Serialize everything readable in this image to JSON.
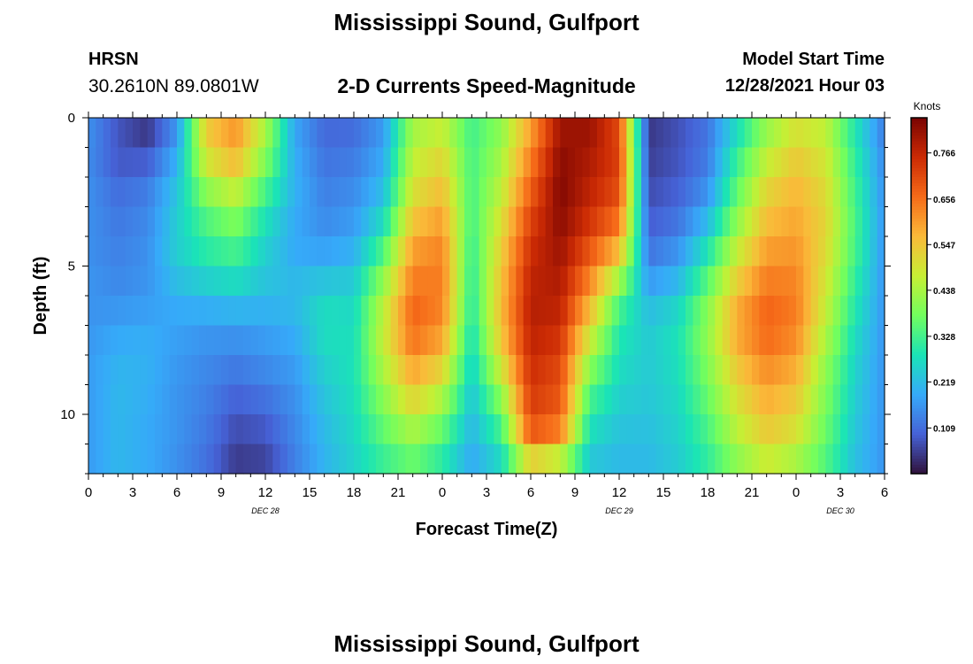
{
  "header": {
    "title": "Mississippi Sound, Gulfport",
    "station_id": "HRSN",
    "coordinates": "30.2610N  89.0801W",
    "subtitle": "2-D Currents Speed-Magnitude",
    "model_start_label": "Model Start Time",
    "model_start_value": "12/28/2021 Hour 03"
  },
  "footer": {
    "title": "Mississippi Sound, Gulfport"
  },
  "chart_data": {
    "type": "heatmap",
    "xlabel": "Forecast Time(Z)",
    "ylabel": "Depth (ft)",
    "colorbar_label": "Knots",
    "x_range_hours": [
      0,
      54
    ],
    "y_range_ft": [
      0,
      12
    ],
    "y_inverted": true,
    "x_tick_labels": [
      "0",
      "3",
      "6",
      "9",
      "12",
      "15",
      "18",
      "21",
      "0",
      "3",
      "6",
      "9",
      "12",
      "15",
      "18",
      "21",
      "0",
      "3",
      "6"
    ],
    "y_ticks": [
      0,
      5,
      10
    ],
    "y_tick_labels": [
      "0",
      "5",
      "10"
    ],
    "day_labels": [
      {
        "text": "DEC 28",
        "hour": 12
      },
      {
        "text": "DEC 29",
        "hour": 36
      },
      {
        "text": "DEC 30",
        "hour": 51
      }
    ],
    "colorbar_range": [
      0.0,
      0.85
    ],
    "colorbar_ticks": [
      0.109,
      0.219,
      0.328,
      0.438,
      0.547,
      0.656,
      0.766
    ],
    "colorbar_tick_labels": [
      "0.109",
      "0.219",
      "0.328",
      "0.438",
      "0.547",
      "0.656",
      "0.766"
    ],
    "colormap": [
      "#30123b",
      "#4662d7",
      "#36aaf9",
      "#1ae4b6",
      "#72fe5e",
      "#c7ef34",
      "#faba39",
      "#f66b19",
      "#cb2a04",
      "#7a0403"
    ],
    "depths_ft": [
      0,
      1,
      2,
      3,
      4,
      5,
      6,
      7,
      8,
      9,
      10,
      11,
      12
    ],
    "hours": [
      0,
      2,
      4,
      6,
      8,
      10,
      12,
      14,
      16,
      18,
      20,
      22,
      24,
      26,
      28,
      30,
      32,
      34,
      36,
      38,
      40,
      42,
      44,
      46,
      48,
      50,
      52,
      54
    ],
    "speed_knots": [
      [
        0.16,
        0.09,
        0.03,
        0.15,
        0.55,
        0.62,
        0.45,
        0.18,
        0.1,
        0.1,
        0.16,
        0.42,
        0.45,
        0.32,
        0.4,
        0.58,
        0.8,
        0.82,
        0.7,
        0.04,
        0.08,
        0.12,
        0.25,
        0.4,
        0.48,
        0.45,
        0.28,
        0.12
      ],
      [
        0.15,
        0.07,
        0.06,
        0.18,
        0.52,
        0.6,
        0.42,
        0.19,
        0.11,
        0.12,
        0.18,
        0.45,
        0.5,
        0.33,
        0.42,
        0.62,
        0.82,
        0.8,
        0.72,
        0.05,
        0.07,
        0.12,
        0.3,
        0.44,
        0.52,
        0.48,
        0.3,
        0.14
      ],
      [
        0.15,
        0.1,
        0.12,
        0.22,
        0.45,
        0.52,
        0.36,
        0.2,
        0.13,
        0.14,
        0.2,
        0.48,
        0.54,
        0.33,
        0.45,
        0.66,
        0.84,
        0.78,
        0.72,
        0.06,
        0.09,
        0.14,
        0.34,
        0.5,
        0.56,
        0.5,
        0.32,
        0.15
      ],
      [
        0.16,
        0.12,
        0.14,
        0.24,
        0.36,
        0.42,
        0.3,
        0.2,
        0.14,
        0.16,
        0.24,
        0.52,
        0.58,
        0.33,
        0.48,
        0.7,
        0.84,
        0.76,
        0.68,
        0.08,
        0.1,
        0.18,
        0.38,
        0.54,
        0.58,
        0.52,
        0.33,
        0.16
      ],
      [
        0.15,
        0.13,
        0.15,
        0.25,
        0.32,
        0.36,
        0.26,
        0.18,
        0.16,
        0.18,
        0.3,
        0.58,
        0.62,
        0.32,
        0.52,
        0.74,
        0.82,
        0.72,
        0.62,
        0.1,
        0.14,
        0.25,
        0.44,
        0.58,
        0.6,
        0.52,
        0.34,
        0.16
      ],
      [
        0.16,
        0.14,
        0.16,
        0.24,
        0.28,
        0.3,
        0.24,
        0.2,
        0.2,
        0.22,
        0.38,
        0.62,
        0.64,
        0.3,
        0.54,
        0.76,
        0.8,
        0.66,
        0.5,
        0.14,
        0.18,
        0.32,
        0.5,
        0.62,
        0.62,
        0.5,
        0.32,
        0.16
      ],
      [
        0.16,
        0.15,
        0.16,
        0.2,
        0.22,
        0.24,
        0.22,
        0.22,
        0.26,
        0.26,
        0.44,
        0.66,
        0.64,
        0.3,
        0.56,
        0.78,
        0.78,
        0.6,
        0.36,
        0.2,
        0.24,
        0.38,
        0.56,
        0.66,
        0.64,
        0.48,
        0.3,
        0.16
      ],
      [
        0.16,
        0.18,
        0.19,
        0.18,
        0.17,
        0.17,
        0.18,
        0.2,
        0.28,
        0.27,
        0.48,
        0.68,
        0.62,
        0.28,
        0.56,
        0.78,
        0.76,
        0.52,
        0.3,
        0.24,
        0.28,
        0.42,
        0.6,
        0.68,
        0.64,
        0.46,
        0.28,
        0.16
      ],
      [
        0.17,
        0.2,
        0.2,
        0.17,
        0.15,
        0.14,
        0.16,
        0.18,
        0.26,
        0.28,
        0.46,
        0.62,
        0.56,
        0.26,
        0.52,
        0.76,
        0.72,
        0.44,
        0.28,
        0.24,
        0.28,
        0.4,
        0.56,
        0.64,
        0.6,
        0.42,
        0.26,
        0.16
      ],
      [
        0.17,
        0.21,
        0.2,
        0.16,
        0.14,
        0.11,
        0.13,
        0.16,
        0.24,
        0.28,
        0.42,
        0.56,
        0.48,
        0.24,
        0.44,
        0.74,
        0.7,
        0.36,
        0.26,
        0.24,
        0.27,
        0.38,
        0.52,
        0.6,
        0.56,
        0.4,
        0.25,
        0.16
      ],
      [
        0.17,
        0.21,
        0.19,
        0.16,
        0.13,
        0.08,
        0.1,
        0.15,
        0.22,
        0.27,
        0.38,
        0.48,
        0.4,
        0.22,
        0.36,
        0.72,
        0.68,
        0.3,
        0.24,
        0.23,
        0.26,
        0.35,
        0.48,
        0.56,
        0.52,
        0.38,
        0.24,
        0.16
      ],
      [
        0.17,
        0.21,
        0.19,
        0.16,
        0.12,
        0.06,
        0.07,
        0.14,
        0.21,
        0.26,
        0.34,
        0.4,
        0.33,
        0.2,
        0.3,
        0.66,
        0.6,
        0.26,
        0.22,
        0.22,
        0.25,
        0.32,
        0.44,
        0.52,
        0.48,
        0.36,
        0.23,
        0.16
      ],
      [
        0.17,
        0.21,
        0.19,
        0.15,
        0.11,
        0.04,
        0.05,
        0.13,
        0.2,
        0.25,
        0.3,
        0.34,
        0.28,
        0.18,
        0.24,
        0.4,
        0.34,
        0.22,
        0.21,
        0.21,
        0.24,
        0.3,
        0.38,
        0.44,
        0.4,
        0.33,
        0.22,
        0.16
      ]
    ]
  }
}
